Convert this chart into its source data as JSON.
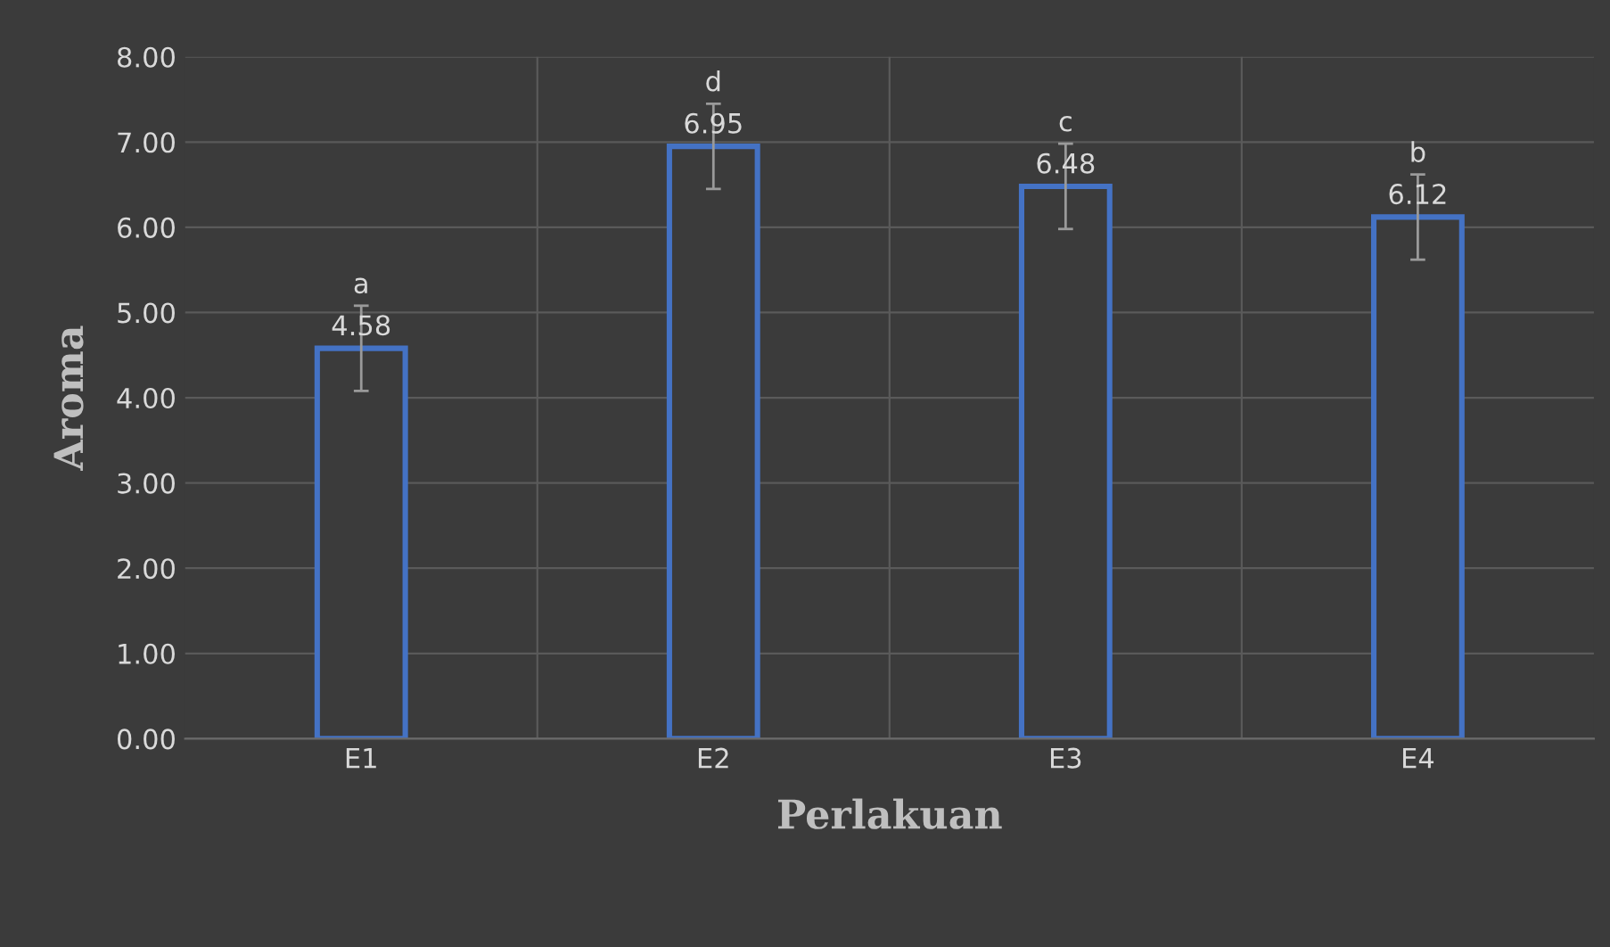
{
  "chart_data": {
    "type": "bar",
    "xlabel": "Perlakuan",
    "ylabel": "Aroma",
    "categories": [
      "E1",
      "E2",
      "E3",
      "E4"
    ],
    "values": [
      4.58,
      6.95,
      6.48,
      6.12
    ],
    "value_labels": [
      "4.58",
      "6.95",
      "6.48",
      "6.12"
    ],
    "errors": [
      0.5,
      0.5,
      0.5,
      0.5
    ],
    "color": "#4472c4",
    "ylim": [
      0,
      8
    ],
    "yticks": [
      {
        "value": 0,
        "label": "0.00"
      },
      {
        "value": 1,
        "label": "1.00"
      },
      {
        "value": 2,
        "label": "2.00"
      },
      {
        "value": 3,
        "label": "3.00"
      },
      {
        "value": 4,
        "label": "4.00"
      },
      {
        "value": 5,
        "label": "5.00"
      },
      {
        "value": 6,
        "label": "6.00"
      },
      {
        "value": 7,
        "label": "7.00"
      },
      {
        "value": 8,
        "label": "8.00"
      }
    ],
    "annotations": [
      {
        "text": "a",
        "x": "E1",
        "y": 4.58
      },
      {
        "text": "d",
        "x": "E2",
        "y": 6.95
      },
      {
        "text": "c",
        "x": "E3",
        "y": 6.48
      },
      {
        "text": "b",
        "x": "E4",
        "y": 6.12
      }
    ],
    "grid": true
  }
}
